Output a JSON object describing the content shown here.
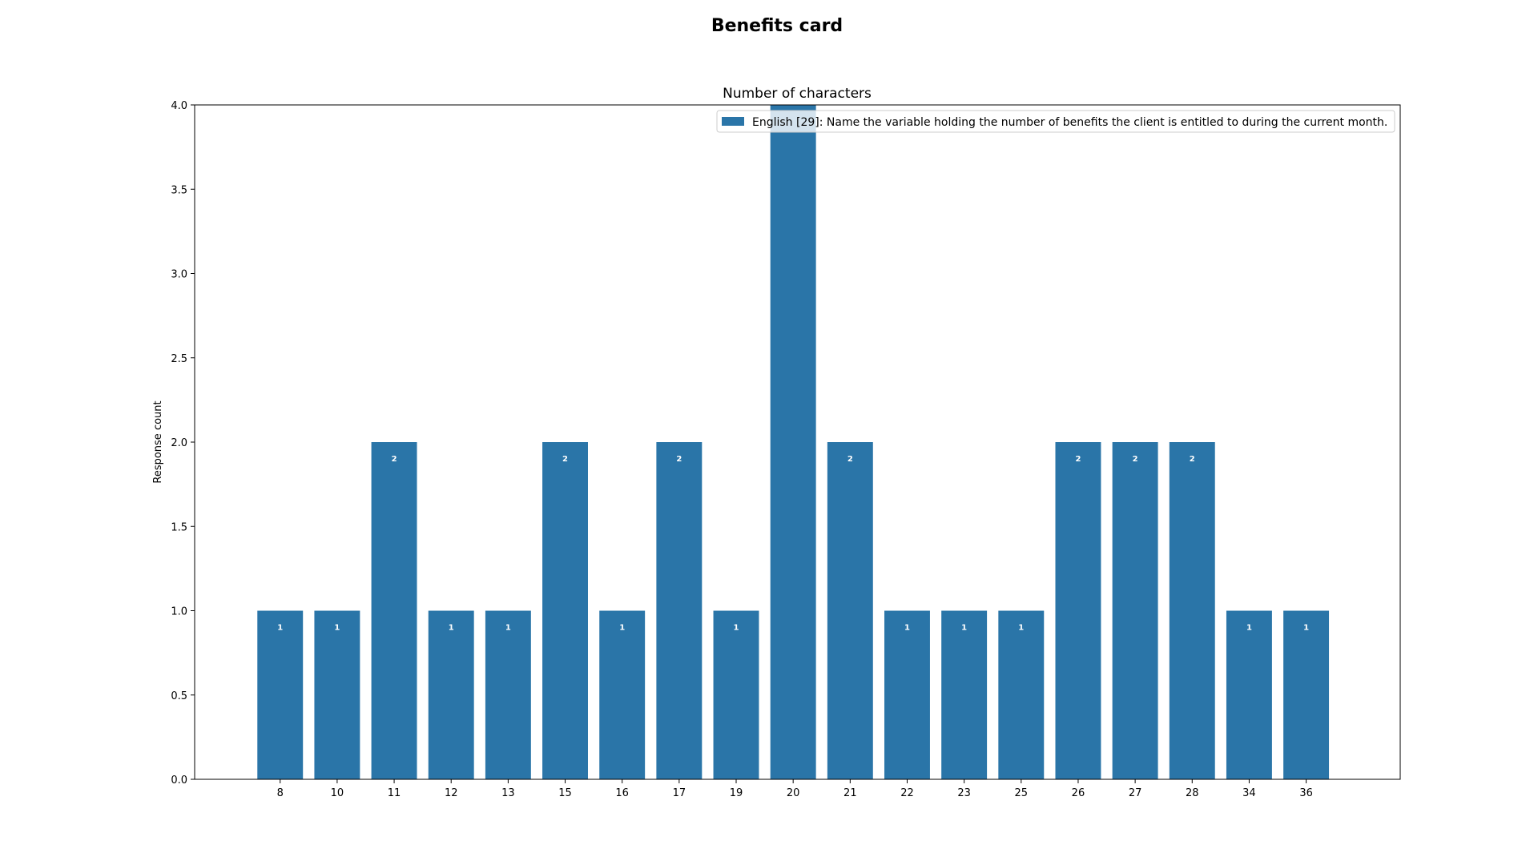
{
  "chart_data": {
    "type": "bar",
    "title": "Benefits card",
    "subtitle": "Number of characters",
    "xlabel": "",
    "ylabel": "Response count",
    "ylim": [
      0,
      4
    ],
    "yticks": [
      "0.0",
      "0.5",
      "1.0",
      "1.5",
      "2.0",
      "2.5",
      "3.0",
      "3.5",
      "4.0"
    ],
    "grid": false,
    "legend_position": "top-right",
    "categories": [
      "8",
      "10",
      "11",
      "12",
      "13",
      "15",
      "16",
      "17",
      "19",
      "20",
      "21",
      "22",
      "23",
      "25",
      "26",
      "27",
      "28",
      "34",
      "36"
    ],
    "series": [
      {
        "name": "English [29]: Name the variable holding the number of benefits the client is entitled to during the current month.",
        "color": "#2a75a8",
        "values": [
          1,
          1,
          2,
          1,
          1,
          2,
          1,
          2,
          1,
          4,
          2,
          1,
          1,
          1,
          2,
          2,
          2,
          1,
          1
        ],
        "labels": [
          "1",
          "1",
          "2",
          "1",
          "1",
          "2",
          "1",
          "2",
          "1",
          "",
          "2",
          "1",
          "1",
          "1",
          "2",
          "2",
          "2",
          "1",
          "1"
        ]
      }
    ]
  }
}
